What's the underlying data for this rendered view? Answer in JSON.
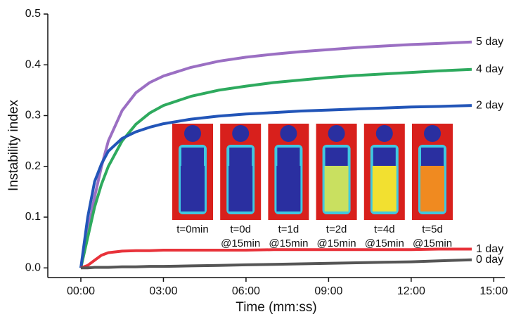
{
  "chart_data": {
    "type": "line",
    "xlabel": "Time (mm:ss)",
    "ylabel": "Instability index",
    "x": [
      0,
      0.25,
      0.5,
      0.75,
      1,
      1.5,
      2,
      2.5,
      3,
      4,
      5,
      6,
      7,
      8,
      9,
      10,
      11,
      12,
      13,
      14.2
    ],
    "xlim": [
      -1.2,
      15.4
    ],
    "xticks": [
      {
        "value": 0,
        "label": "00:00"
      },
      {
        "value": 3,
        "label": "03:00"
      },
      {
        "value": 6,
        "label": "06:00"
      },
      {
        "value": 9,
        "label": "09:00"
      },
      {
        "value": 12,
        "label": "12:00"
      },
      {
        "value": 15,
        "label": "15:00"
      }
    ],
    "ylim": [
      -0.019,
      0.5
    ],
    "yticks": [
      {
        "value": 0,
        "label": "0.0"
      },
      0.1,
      0.2,
      0.3,
      0.4,
      0.5
    ],
    "series": [
      {
        "name": "5 day",
        "color": "#9b6fc3",
        "values": [
          0,
          0.07,
          0.14,
          0.2,
          0.25,
          0.31,
          0.345,
          0.365,
          0.378,
          0.395,
          0.407,
          0.415,
          0.421,
          0.426,
          0.43,
          0.434,
          0.437,
          0.44,
          0.442,
          0.445
        ]
      },
      {
        "name": "4 day",
        "color": "#2eaa5e",
        "values": [
          0,
          0.06,
          0.12,
          0.165,
          0.2,
          0.25,
          0.283,
          0.305,
          0.32,
          0.338,
          0.35,
          0.358,
          0.365,
          0.37,
          0.375,
          0.379,
          0.382,
          0.385,
          0.388,
          0.391
        ]
      },
      {
        "name": "2 day",
        "color": "#2255b8",
        "values": [
          0,
          0.1,
          0.17,
          0.205,
          0.23,
          0.255,
          0.268,
          0.277,
          0.284,
          0.293,
          0.299,
          0.303,
          0.306,
          0.309,
          0.311,
          0.313,
          0.315,
          0.317,
          0.318,
          0.32
        ]
      },
      {
        "name": "1 day",
        "color": "#e8323a",
        "values": [
          0,
          0.005,
          0.015,
          0.025,
          0.03,
          0.033,
          0.034,
          0.034,
          0.035,
          0.035,
          0.035,
          0.035,
          0.036,
          0.036,
          0.036,
          0.036,
          0.036,
          0.036,
          0.037,
          0.037
        ]
      },
      {
        "name": "0 day",
        "color": "#555555",
        "values": [
          0,
          0,
          0.001,
          0.001,
          0.001,
          0.002,
          0.002,
          0.003,
          0.003,
          0.004,
          0.005,
          0.006,
          0.007,
          0.008,
          0.009,
          0.01,
          0.011,
          0.012,
          0.014,
          0.016
        ]
      }
    ],
    "inset_labels": [
      [
        "t=0min"
      ],
      [
        "t=0d",
        "@15min"
      ],
      [
        "t=1d",
        "@15min"
      ],
      [
        "t=2d",
        "@15min"
      ],
      [
        "t=4d",
        "@15min"
      ],
      [
        "t=5d",
        "@15min"
      ]
    ]
  }
}
